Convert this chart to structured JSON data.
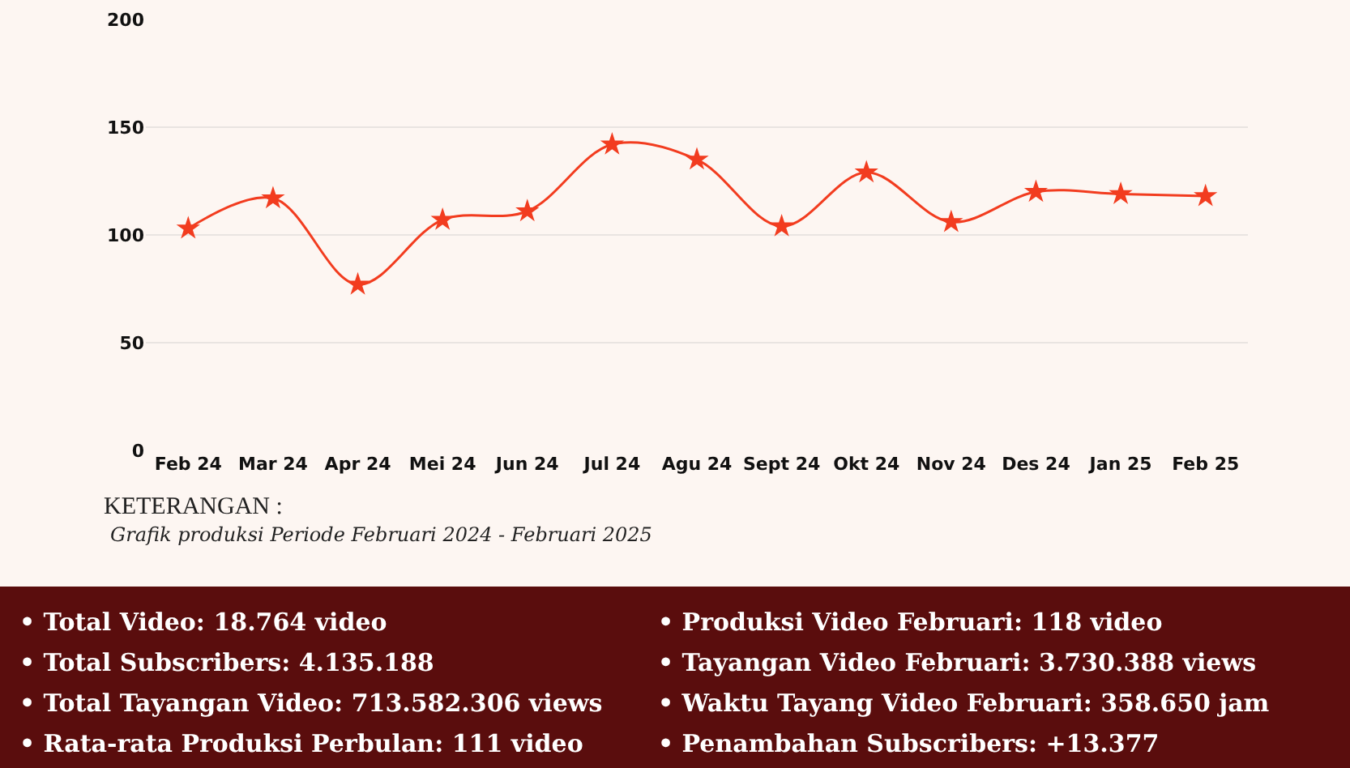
{
  "chart_data": {
    "type": "line",
    "categories": [
      "Feb 24",
      "Mar 24",
      "Apr 24",
      "Mei 24",
      "Jun 24",
      "Jul 24",
      "Agu 24",
      "Sept 24",
      "Okt 24",
      "Nov 24",
      "Des 24",
      "Jan 25",
      "Feb 25"
    ],
    "series": [
      {
        "color": "#f23c1f",
        "values": [
          103,
          117,
          77,
          107,
          111,
          142,
          135,
          104,
          129,
          106,
          120,
          119,
          118
        ]
      }
    ],
    "ylim": [
      0,
      200
    ],
    "yticks": [
      0,
      50,
      100,
      150,
      200
    ],
    "grid": "y",
    "marker": "star",
    "line_style": "solid",
    "annotations": [
      "KETERANGAN :",
      "Grafik produksi Periode Februari 2024 - Februari 2025",
      "• Total Video: 18.764 video",
      "• Total Subscribers: 4.135.188",
      "• Total Tayangan Video: 713.582.306 views",
      "• Rata-rata Produksi Perbulan: 111 video",
      "• Produksi Video Februari: 118 video",
      "• Tayangan Video Februari: 3.730.388 views",
      "• Waktu Tayang Video Februari: 358.650 jam",
      "• Penambahan Subscribers: +13.377"
    ]
  }
}
